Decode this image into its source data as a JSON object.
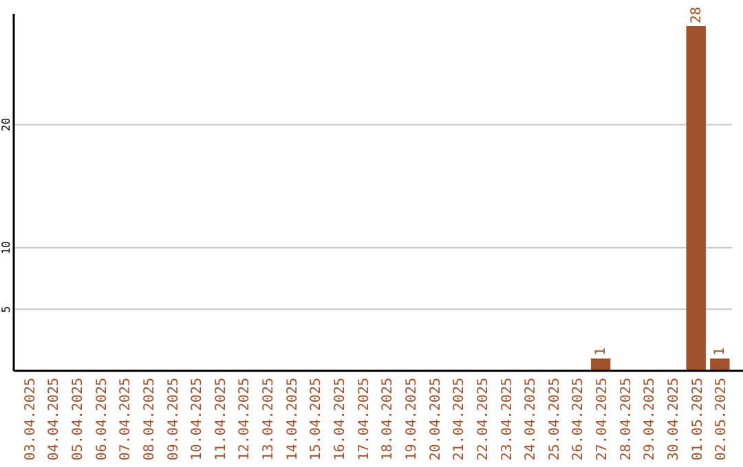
{
  "chart_data": {
    "type": "bar",
    "categories": [
      "03.04.2025",
      "04.04.2025",
      "05.04.2025",
      "06.04.2025",
      "07.04.2025",
      "08.04.2025",
      "09.04.2025",
      "10.04.2025",
      "11.04.2025",
      "12.04.2025",
      "13.04.2025",
      "14.04.2025",
      "15.04.2025",
      "16.04.2025",
      "17.04.2025",
      "18.04.2025",
      "19.04.2025",
      "20.04.2025",
      "21.04.2025",
      "22.04.2025",
      "23.04.2025",
      "24.04.2025",
      "25.04.2025",
      "26.04.2025",
      "27.04.2025",
      "28.04.2025",
      "29.04.2025",
      "30.04.2025",
      "01.05.2025",
      "02.05.2025"
    ],
    "values": [
      0,
      0,
      0,
      0,
      0,
      0,
      0,
      0,
      0,
      0,
      0,
      0,
      0,
      0,
      0,
      0,
      0,
      0,
      0,
      0,
      0,
      0,
      0,
      0,
      1,
      0,
      0,
      0,
      28,
      1
    ],
    "value_labels": [
      null,
      null,
      null,
      null,
      null,
      null,
      null,
      null,
      null,
      null,
      null,
      null,
      null,
      null,
      null,
      null,
      null,
      null,
      null,
      null,
      null,
      null,
      null,
      null,
      "1",
      null,
      null,
      null,
      "28",
      "1"
    ],
    "color": "#a0522d",
    "ylim": [
      0,
      29
    ],
    "yticks": [
      5,
      10,
      20
    ],
    "grid": "y"
  }
}
